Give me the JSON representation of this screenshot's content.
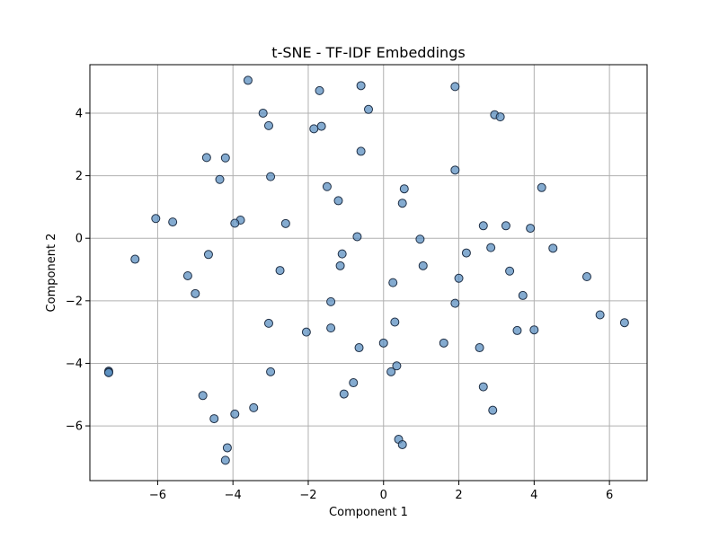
{
  "chart_data": {
    "type": "scatter",
    "title": "t-SNE - TF-IDF Embeddings",
    "xlabel": "Component 1",
    "ylabel": "Component 2",
    "xlim": [
      -7.8,
      7.0
    ],
    "ylim": [
      -7.75,
      5.55
    ],
    "xticks": [
      -6,
      -4,
      -2,
      0,
      2,
      4,
      6
    ],
    "yticks": [
      -6,
      -4,
      -2,
      0,
      2,
      4
    ],
    "grid": true,
    "marker_color": "#5b8fc0",
    "marker_edge": "#1f2f45",
    "series": [
      {
        "x": [
          -3.6,
          -3.2,
          -1.7,
          -0.6,
          -0.4,
          1.9,
          2.95,
          3.1,
          -3.05,
          -1.85,
          -1.65,
          -4.7,
          -4.2,
          -0.6,
          -4.35,
          -3.0,
          1.9,
          -1.5,
          0.55,
          4.2,
          -1.2,
          0.5,
          -6.05,
          -5.6,
          -3.8,
          -3.95,
          -2.6,
          2.65,
          3.25,
          3.9,
          -0.7,
          0.97,
          4.5,
          -6.6,
          -4.65,
          2.2,
          2.85,
          -1.1,
          1.05,
          -2.75,
          3.35,
          -5.2,
          5.4,
          2.0,
          0.25,
          -1.15,
          -5.0,
          3.7,
          -1.4,
          1.9,
          5.75,
          -3.05,
          0.3,
          6.4,
          -2.05,
          -1.4,
          3.55,
          4.0,
          1.6,
          0.0,
          -0.65,
          2.55,
          -7.3,
          -7.3,
          -7.3,
          0.35,
          -3.0,
          0.2,
          2.65,
          -0.8,
          -1.05,
          -4.8,
          2.9,
          -3.45,
          -3.95,
          -4.5,
          0.4,
          0.5,
          -4.15,
          -4.2
        ],
        "y": [
          5.05,
          4.0,
          4.72,
          4.88,
          4.12,
          4.85,
          3.95,
          3.88,
          3.6,
          3.5,
          3.58,
          2.58,
          2.57,
          2.78,
          1.88,
          1.97,
          2.18,
          1.65,
          1.58,
          1.62,
          1.2,
          1.12,
          0.63,
          0.52,
          0.58,
          0.48,
          0.47,
          0.4,
          0.4,
          0.32,
          0.05,
          -0.03,
          -0.32,
          -0.67,
          -0.52,
          -0.47,
          -0.3,
          -0.5,
          -0.88,
          -1.03,
          -1.05,
          -1.2,
          -1.23,
          -1.28,
          -1.42,
          -0.88,
          -1.77,
          -1.83,
          -2.03,
          -2.08,
          -2.45,
          -2.72,
          -2.68,
          -2.7,
          -3.0,
          -2.87,
          -2.95,
          -2.93,
          -3.35,
          -3.35,
          -3.5,
          -3.5,
          -4.25,
          -4.28,
          -4.3,
          -4.08,
          -4.27,
          -4.27,
          -4.75,
          -4.62,
          -4.98,
          -5.03,
          -5.5,
          -5.42,
          -5.62,
          -5.77,
          -6.43,
          -6.6,
          -6.7,
          -7.1
        ]
      }
    ]
  }
}
